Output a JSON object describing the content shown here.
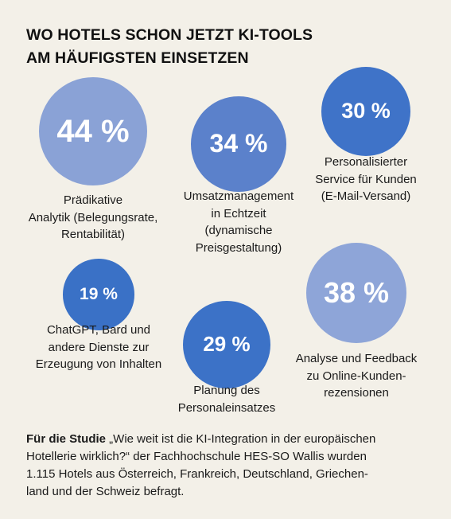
{
  "title": {
    "line1": "WO HOTELS SCHON JETZT KI-TOOLS",
    "line2": "AM HÄUFIGSTEN EINSETZEN"
  },
  "chart_data": {
    "type": "bubble",
    "unit": "%",
    "items": [
      {
        "id": "praediktive-analytik",
        "value": 44,
        "label": "44 %",
        "color": "#8aa2d6",
        "caption": [
          "Prädikative",
          "Analytik (Belegungsrate,",
          "Rentabilität)"
        ]
      },
      {
        "id": "umsatzmanagement",
        "value": 34,
        "label": "34 %",
        "color": "#5b81cb",
        "caption": [
          "Umsatzmanagement",
          "in Echtzeit",
          "(dynamische",
          "Preisgestaltung)"
        ]
      },
      {
        "id": "personalisierter-service",
        "value": 30,
        "label": "30 %",
        "color": "#3f73c8",
        "caption": [
          "Personalisierter",
          "Service für Kunden",
          "(E-Mail-Versand)"
        ]
      },
      {
        "id": "chatgpt",
        "value": 19,
        "label": "19 %",
        "color": "#3a71c6",
        "caption": [
          "ChatGPT, Bard und",
          "andere Dienste zur",
          "Erzeugung von Inhalten"
        ]
      },
      {
        "id": "personaleinsatz",
        "value": 29,
        "label": "29 %",
        "color": "#3c72c7",
        "caption": [
          "Planung des",
          "Personaleinsatzes"
        ]
      },
      {
        "id": "online-rezensionen",
        "value": 38,
        "label": "38 %",
        "color": "#8ea5d8",
        "caption": [
          "Analyse und Feedback",
          "zu Online-Kunden-",
          "rezensionen"
        ]
      }
    ]
  },
  "footer": {
    "bold": "Für die Studie",
    "line1_rest": " „Wie weit ist die KI-Integration in der europäischen",
    "line2": "Hotellerie wirklich?“ der Fachhochschule HES-SO Wallis wurden",
    "line3": "1.115 Hotels aus Österreich, Frankreich, Deutschland, Griechen-",
    "line4": "land und der Schweiz befragt."
  }
}
